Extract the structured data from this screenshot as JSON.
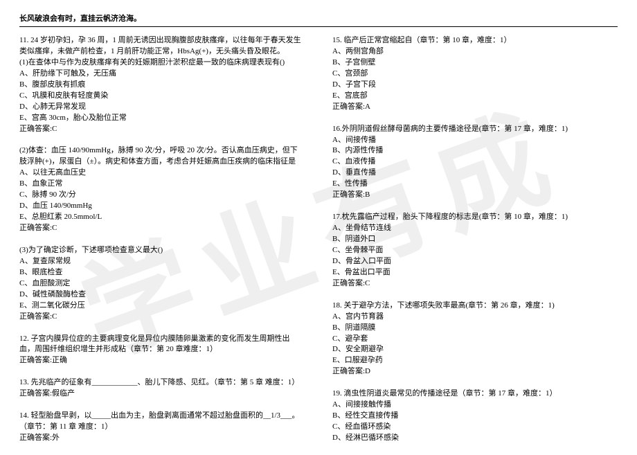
{
  "watermark_text": "学业有成",
  "header_text": "长风破浪会有时，直挂云帆济沧海。",
  "left_column": {
    "q11": {
      "stem1": "11. 24 岁初孕妇，孕 36 周，1 周前无诱因出现胸腹部皮肤瘙痒，以往每年于春天发生类似瘙痒，未做产前检查，1 月前肝功能正常，HbsAg(+)，无头痛头昏及眼花。",
      "stem2": "(1)在查体中与作为皮肤瘙痒有关的妊娠期胆汁淤积症最一致的临床病理表现有()",
      "options": [
        "A、肝肋缘下可触及，无压痛",
        "B、腹部皮肤有抓痕",
        "C、巩膜和皮肤有轻度黄染",
        "D、心肺无异常发现",
        "E、宫高 30cm，胎心及胎位正常"
      ],
      "answer": "正确答案:C"
    },
    "q11_2": {
      "stem": "(2)体查：血压 140/90mmHg，脉搏 90 次/分，呼吸 20 次/分。否认高血压病史，但下肢浮肿(+)，尿蛋白（±）。病史和体查方面，考虑合并妊娠高血压疾病的临床指征是",
      "options": [
        "A、以往无高血压史",
        "B、血象正常",
        "C、脉搏 90 次/分",
        "D、血压 140/90mmHg",
        "E、总胆红素 20.5mmol/L"
      ],
      "answer": "正确答案:C"
    },
    "q11_3": {
      "stem": "(3)为了确定诊断，下述哪项检查意义最大()",
      "options": [
        "A、复查尿常规",
        "B、眼底检查",
        "C、血胆酸测定",
        "D、碱性磷酸酶检查",
        "E、测二氧化碳分压"
      ],
      "answer": "正确答案:C"
    },
    "q12": {
      "stem": "12. 子宫内膜异位症的主要病理变化是异位内膜随卵巢激素的变化而发生周期性出血，周围纤维组织增生并形成粘（章节：第 20 章难度：1）",
      "answer": "正确答案:正确"
    },
    "q13": {
      "stem": "13. 先兆临产的征象有____________、胎儿下降感、见红。（章节：第 5 章  难度：1）",
      "answer": "正确答案:假临产"
    },
    "q14": {
      "stem": "14. 轻型胎盘早剥，以_____出血为主，胎盘剥离面通常不超过胎盘面积的__1/3___。（章节：第 11 章  难度：1）",
      "answer": "正确答案:外"
    }
  },
  "right_column": {
    "q15": {
      "stem": "15. 临产后正常宫缩起自（章节：第 10 章，难度：1）",
      "options": [
        "A、两侧宫角部",
        "B、子宫侧壁",
        "C、宫颈部",
        "D、子宫下段",
        "E、宫底部"
      ],
      "answer": "正确答案:A"
    },
    "q16": {
      "stem": "16.外阴阴道假丝酵母菌病的主要传播途径是(章节：第 17 章，难度：1)",
      "options": [
        "A、间接传播",
        "B、内源性传播",
        "C、血液传播",
        "D、垂直传播",
        "E、性传播"
      ],
      "answer": "正确答案:B"
    },
    "q17": {
      "stem": "17.枕先露临产过程，胎头下降程度的标志是(章节：第 10 章，难度：1)",
      "options": [
        "A、坐骨结节连线",
        "B、阴道外口",
        "C、坐骨棘平面",
        "D、骨盆入口平面",
        "E、骨盆出口平面"
      ],
      "answer": "正确答案:C"
    },
    "q18": {
      "stem": "18. 关于避孕方法，下述哪项失败率最高(章节：第 26 章，难度：1)",
      "options": [
        "A、宫内节育器",
        "B、阴道隔膜",
        "C、避孕套",
        "D、安全期避孕",
        "E、口服避孕药"
      ],
      "answer": "正确答案:D"
    },
    "q19": {
      "stem": "19. 滴虫性阴道炎最常见的传播途径是（章节：第 17 章，难度：1）",
      "options": [
        "A、间接接触传播",
        "B、经性交直接传播",
        "C、经血循环感染",
        "D、经淋巴循环感染"
      ]
    }
  }
}
